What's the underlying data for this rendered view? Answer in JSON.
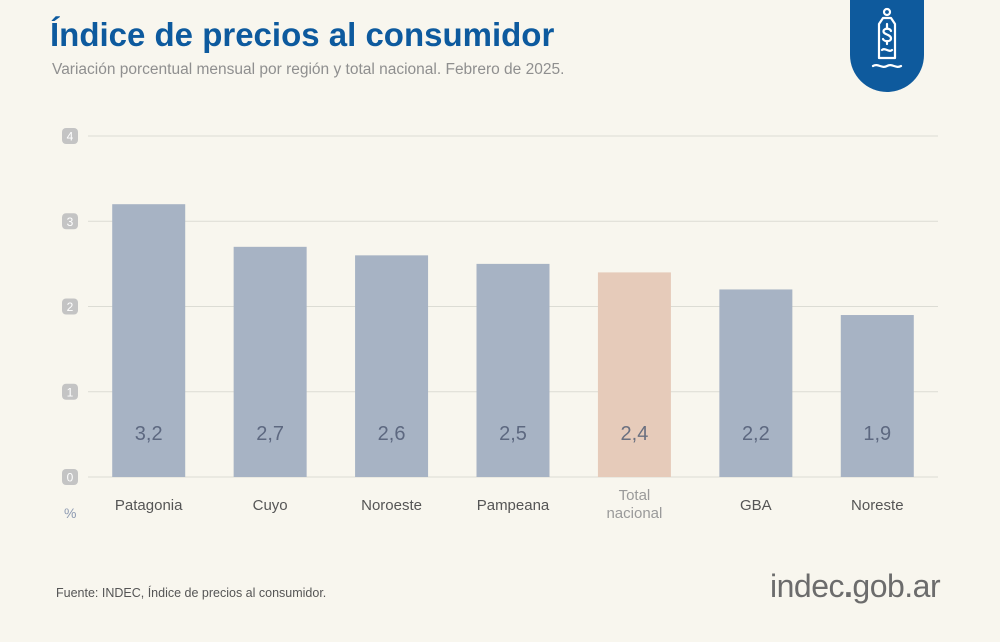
{
  "header": {
    "title": "Índice de precios al consumidor",
    "subtitle": "Variación porcentual mensual por región y total nacional. Febrero de 2025."
  },
  "chart_data": {
    "type": "bar",
    "title": "Índice de precios al consumidor",
    "subtitle": "Variación porcentual mensual por región y total nacional. Febrero de 2025.",
    "categories": [
      "Patagonia",
      "Cuyo",
      "Noroeste",
      "Pampeana",
      "Total nacional",
      "GBA",
      "Noreste"
    ],
    "category_lines": [
      [
        "Patagonia"
      ],
      [
        "Cuyo"
      ],
      [
        "Noroeste"
      ],
      [
        "Pampeana"
      ],
      [
        "Total",
        "nacional"
      ],
      [
        "GBA"
      ],
      [
        "Noreste"
      ]
    ],
    "values": [
      3.2,
      2.7,
      2.6,
      2.5,
      2.4,
      2.2,
      1.9
    ],
    "value_labels": [
      "3,2",
      "2,7",
      "2,6",
      "2,5",
      "2,4",
      "2,2",
      "1,9"
    ],
    "highlight": "Total nacional",
    "ylabel": "%",
    "ylim": [
      0,
      4
    ],
    "yticks": [
      0,
      1,
      2,
      3,
      4
    ],
    "grid": true
  },
  "colors": {
    "title": "#0d5a9e",
    "bar": "#a7b3c4",
    "bar_highlight": "#e6cbba",
    "value_text": "#5d6880",
    "value_text_highlight": "#6a7080",
    "category_text": "#555555",
    "category_text_highlight": "#9a9a9a",
    "tick_badge": "#c4c4c4",
    "gridline": "#dcdcd4",
    "badge": "#0e5a9d"
  },
  "footer": {
    "source": "Fuente: INDEC, Índice de precios al consumidor.",
    "logo_main": "indec",
    "logo_dot": ".",
    "logo_domain": "gob.ar"
  },
  "icons": {
    "badge": "price-tag-dollar-icon"
  }
}
